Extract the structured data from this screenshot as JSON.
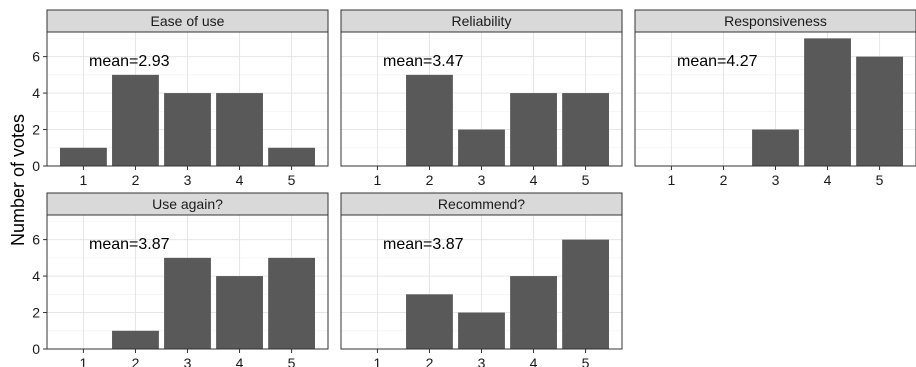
{
  "chart_data": {
    "type": "bar",
    "ylabel": "Number of votes",
    "categories": [
      "1",
      "2",
      "3",
      "4",
      "5"
    ],
    "yticks": [
      0,
      2,
      4,
      6
    ],
    "ylim": [
      0,
      7.35
    ],
    "grid": true,
    "bar_color": "#595959",
    "strip_color": "#d9d9d9",
    "panels": [
      {
        "title": "Ease of use",
        "annotation": "mean=2.93",
        "values": [
          1,
          5,
          4,
          4,
          1
        ]
      },
      {
        "title": "Reliability",
        "annotation": "mean=3.47",
        "values": [
          0,
          5,
          2,
          4,
          4
        ]
      },
      {
        "title": "Responsiveness",
        "annotation": "mean=4.27",
        "values": [
          0,
          0,
          2,
          7,
          6
        ]
      },
      {
        "title": "Use again?",
        "annotation": "mean=3.87",
        "values": [
          0,
          1,
          5,
          4,
          5
        ]
      },
      {
        "title": "Recommend?",
        "annotation": "mean=3.87",
        "values": [
          0,
          3,
          2,
          4,
          6
        ]
      }
    ]
  }
}
